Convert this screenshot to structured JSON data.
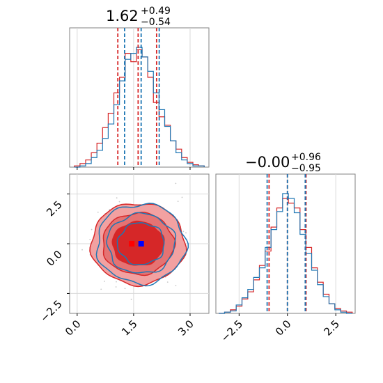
{
  "colors": {
    "series_a": "#d62728",
    "series_b": "#1f77b4",
    "fill_outer": "#f2a1a1",
    "fill_mid": "#e57373",
    "fill_inner": "#d62728",
    "grid": "#d9d9d9",
    "axis": "#808080"
  },
  "chart_data": [
    {
      "type": "histogram",
      "panel": "top-left",
      "title": {
        "value": "1.62",
        "upper": "+0.49",
        "lower": "−0.54"
      },
      "x_range": [
        -0.2,
        3.5
      ],
      "x_ticks": [
        0.0,
        1.5,
        3.0
      ],
      "quantile_lines": {
        "series_a": [
          1.08,
          1.62,
          2.11
        ],
        "series_b": [
          1.26,
          1.7,
          2.18
        ]
      },
      "bin_centers": [
        0.0,
        0.15,
        0.3,
        0.45,
        0.6,
        0.75,
        0.9,
        1.05,
        1.2,
        1.35,
        1.5,
        1.65,
        1.8,
        1.95,
        2.1,
        2.25,
        2.4,
        2.55,
        2.7,
        2.85,
        3.0,
        3.15,
        3.3
      ],
      "series": [
        {
          "values": [
            1,
            3,
            6,
            12,
            20,
            33,
            45,
            62,
            75,
            95,
            88,
            98,
            92,
            75,
            54,
            42,
            35,
            22,
            15,
            8,
            4,
            2,
            1
          ]
        },
        {
          "values": [
            0,
            1,
            3,
            8,
            14,
            24,
            36,
            52,
            72,
            90,
            95,
            100,
            92,
            80,
            62,
            48,
            34,
            22,
            12,
            6,
            3,
            1,
            1
          ]
        }
      ]
    },
    {
      "type": "scatter-contour",
      "panel": "bottom-left",
      "x_range": [
        -0.2,
        3.5
      ],
      "y_range": [
        -3.5,
        3.5
      ],
      "x_ticks": [
        0.0,
        1.5,
        3.0
      ],
      "y_ticks": [
        -2.5,
        0.0,
        2.5
      ],
      "contours_a": [
        {
          "cx": 1.62,
          "cy": 0.0,
          "rx": 1.25,
          "ry": 2.05
        },
        {
          "cx": 1.62,
          "cy": 0.0,
          "rx": 0.95,
          "ry": 1.55
        },
        {
          "cx": 1.62,
          "cy": 0.0,
          "rx": 0.68,
          "ry": 1.1
        }
      ],
      "contours_b": [
        {
          "cx": 1.7,
          "cy": 0.0,
          "rx": 1.18,
          "ry": 2.0
        },
        {
          "cx": 1.7,
          "cy": 0.0,
          "rx": 0.9,
          "ry": 1.5
        },
        {
          "cx": 1.7,
          "cy": 0.0,
          "rx": 0.62,
          "ry": 1.05
        }
      ],
      "markers": [
        {
          "x": 1.45,
          "y": 0.0,
          "series": "series_a"
        },
        {
          "x": 1.7,
          "y": 0.0,
          "series": "series_b"
        }
      ]
    },
    {
      "type": "histogram",
      "panel": "bottom-right",
      "title": {
        "value": "−0.00",
        "upper": "+0.96",
        "lower": "−0.95"
      },
      "x_range": [
        -3.7,
        3.5
      ],
      "x_ticks": [
        -2.5,
        0.0,
        2.5
      ],
      "quantile_lines": {
        "series_a": [
          -0.95,
          0.0,
          0.96
        ],
        "series_b": [
          -1.05,
          0.0,
          0.92
        ]
      },
      "bin_centers": [
        -3.4,
        -3.1,
        -2.8,
        -2.5,
        -2.2,
        -1.9,
        -1.6,
        -1.3,
        -1.0,
        -0.7,
        -0.4,
        -0.1,
        0.2,
        0.5,
        0.8,
        1.1,
        1.4,
        1.7,
        2.0,
        2.3,
        2.6,
        2.9,
        3.2
      ],
      "series": [
        {
          "values": [
            0,
            1,
            3,
            6,
            12,
            18,
            28,
            40,
            52,
            72,
            88,
            96,
            92,
            88,
            70,
            55,
            38,
            26,
            16,
            8,
            4,
            2,
            1
          ]
        },
        {
          "values": [
            0,
            1,
            2,
            7,
            13,
            20,
            30,
            38,
            55,
            70,
            85,
            100,
            96,
            84,
            66,
            50,
            36,
            24,
            14,
            8,
            3,
            1,
            0
          ]
        }
      ]
    }
  ]
}
